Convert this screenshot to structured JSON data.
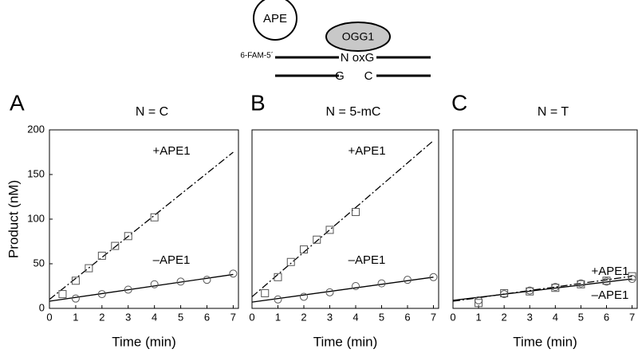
{
  "diagram": {
    "ape": "APE",
    "ogg1": "OGG1",
    "strand_label": "6-FAM-5´",
    "top_bases": "N oxG",
    "bottom_base_1": "G",
    "bottom_base_2": "C"
  },
  "chart_data": [
    {
      "type": "scatter",
      "panel": "A",
      "title": "N = C",
      "xlabel": "Time (min)",
      "ylabel": "Product (nM)",
      "xlim": [
        0,
        7.2
      ],
      "ylim": [
        0,
        200
      ],
      "xticks": [
        0,
        1,
        2,
        3,
        4,
        5,
        6,
        7
      ],
      "yticks": [
        0,
        50,
        100,
        150,
        200
      ],
      "series": [
        {
          "name": "+APE1",
          "marker": "square",
          "line_style": "dashdot",
          "x": [
            0.5,
            1,
            1.5,
            2,
            2.5,
            3,
            4
          ],
          "values": [
            16,
            31,
            45,
            59,
            70,
            81,
            102
          ],
          "fit": {
            "x": [
              0,
              7
            ],
            "y": [
              10,
              175
            ]
          }
        },
        {
          "name": "–APE1",
          "marker": "circle",
          "line_style": "solid",
          "x": [
            1,
            2,
            3,
            4,
            5,
            6,
            7
          ],
          "values": [
            11,
            16,
            21,
            27,
            30,
            32,
            39
          ],
          "fit": {
            "x": [
              0,
              7
            ],
            "y": [
              8,
              38
            ]
          }
        }
      ]
    },
    {
      "type": "scatter",
      "panel": "B",
      "title": "N = 5-mC",
      "xlabel": "Time (min)",
      "xlim": [
        0,
        7.2
      ],
      "ylim": [
        0,
        200
      ],
      "xticks": [
        0,
        1,
        2,
        3,
        4,
        5,
        6,
        7
      ],
      "series": [
        {
          "name": "+APE1",
          "marker": "square",
          "line_style": "dashdot",
          "x": [
            0.5,
            1,
            1.5,
            2,
            2.5,
            3,
            4
          ],
          "values": [
            17,
            35,
            52,
            66,
            77,
            88,
            108
          ],
          "fit": {
            "x": [
              0,
              7
            ],
            "y": [
              13,
              188
            ]
          }
        },
        {
          "name": "–APE1",
          "marker": "circle",
          "line_style": "solid",
          "x": [
            1,
            2,
            3,
            4,
            5,
            6,
            7
          ],
          "values": [
            10,
            13,
            18,
            25,
            28,
            32,
            35
          ],
          "fit": {
            "x": [
              0,
              7
            ],
            "y": [
              7,
              35
            ]
          }
        }
      ]
    },
    {
      "type": "scatter",
      "panel": "C",
      "title": "N = T",
      "xlabel": "Time (min)",
      "xlim": [
        0,
        7.2
      ],
      "ylim": [
        0,
        200
      ],
      "xticks": [
        0,
        1,
        2,
        3,
        4,
        5,
        6,
        7
      ],
      "series": [
        {
          "name": "+APE1",
          "marker": "square",
          "line_style": "dashdot",
          "x": [
            1,
            2,
            3,
            4,
            5,
            6,
            7
          ],
          "values": [
            6,
            17,
            19,
            23,
            27,
            31,
            36
          ],
          "fit": {
            "x": [
              0,
              7
            ],
            "y": [
              8,
              36
            ]
          }
        },
        {
          "name": "–APE1",
          "marker": "circle",
          "line_style": "solid",
          "x": [
            1,
            2,
            3,
            4,
            5,
            6,
            7
          ],
          "values": [
            9,
            16,
            20,
            24,
            28,
            30,
            33
          ],
          "fit": {
            "x": [
              0,
              7
            ],
            "y": [
              9,
              33
            ]
          }
        }
      ]
    }
  ]
}
